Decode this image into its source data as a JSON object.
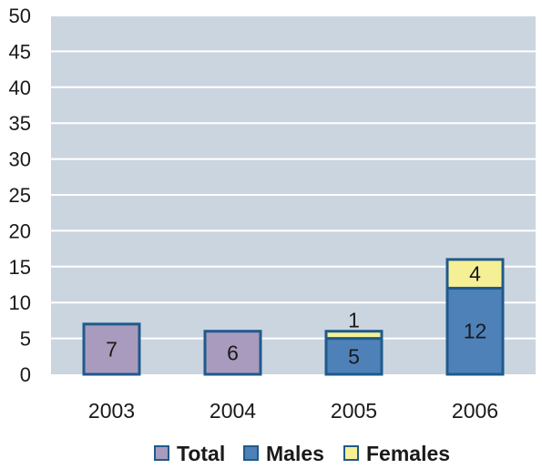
{
  "chart_data": {
    "type": "bar",
    "stacked": true,
    "categories": [
      "2003",
      "2004",
      "2005",
      "2006"
    ],
    "series": [
      {
        "name": "Total",
        "values": [
          7,
          6,
          null,
          null
        ],
        "color": "#a99bbd",
        "edge": "#1f5a8c"
      },
      {
        "name": "Males",
        "values": [
          null,
          null,
          5,
          12
        ],
        "color": "#4f81b9",
        "edge": "#1f5a8c"
      },
      {
        "name": "Females",
        "values": [
          null,
          null,
          1,
          4
        ],
        "color": "#f5f096",
        "edge": "#1f5a8c"
      }
    ],
    "data_labels": [
      [
        "7",
        "6",
        null,
        null
      ],
      [
        null,
        null,
        "5",
        "12"
      ],
      [
        null,
        null,
        "1",
        "4"
      ]
    ],
    "yticks": [
      "0",
      "5",
      "10",
      "15",
      "20",
      "25",
      "30",
      "35",
      "40",
      "45",
      "50"
    ],
    "ylim": [
      0,
      50
    ],
    "grid": true,
    "plot_background": "#cbd5e0",
    "legend_position": "bottom",
    "title": "",
    "xlabel": "",
    "ylabel": ""
  }
}
